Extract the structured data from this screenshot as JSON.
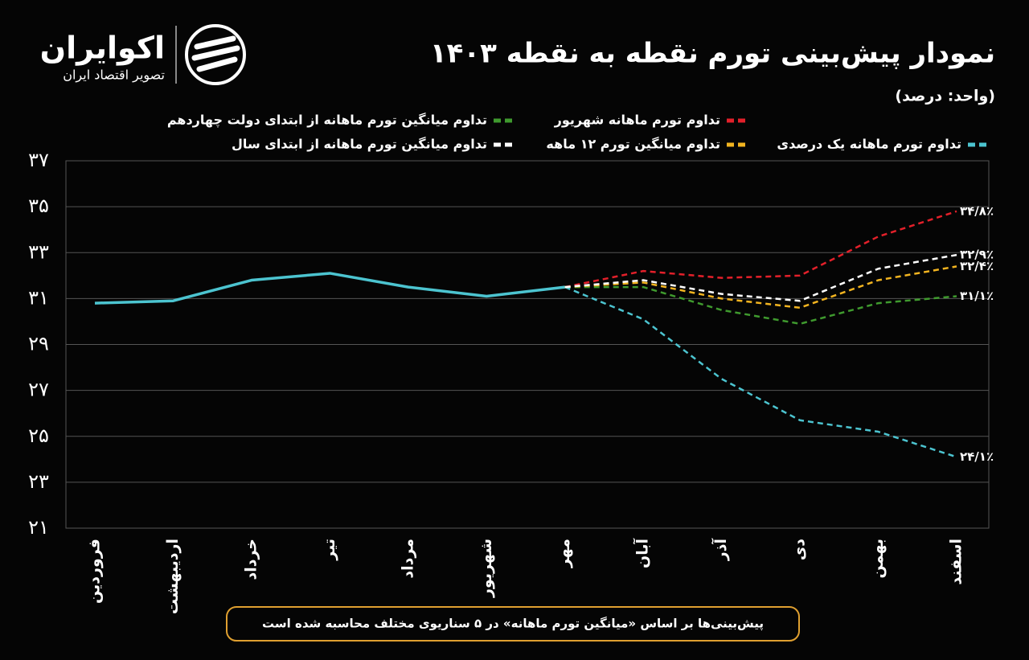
{
  "brand": {
    "name": "اکوایران",
    "tagline": "تصویر اقتصاد ایران"
  },
  "chart_data": {
    "type": "line",
    "title": "نمودار پیش‌بینی تورم نقطه به نقطه ۱۴۰۳",
    "subtitle": "(واحد: درصد)",
    "note": "پیش‌بینی‌ها بر اساس «میانگین تورم ماهانه» در ۵ سناریوی مختلف محاسبه شده است",
    "categories": [
      "فروردین",
      "اردیبهشت",
      "خرداد",
      "تیر",
      "مرداد",
      "شهریور",
      "مهر",
      "آبان",
      "آذر",
      "دی",
      "بهمن",
      "اسفند"
    ],
    "ylim": [
      21,
      37
    ],
    "yticks": [
      {
        "value": 21,
        "label": "۲۱"
      },
      {
        "value": 23,
        "label": "۲۳"
      },
      {
        "value": 25,
        "label": "۲۵"
      },
      {
        "value": 27,
        "label": "۲۷"
      },
      {
        "value": 29,
        "label": "۲۹"
      },
      {
        "value": 31,
        "label": "۳۱"
      },
      {
        "value": 33,
        "label": "۳۳"
      },
      {
        "value": 35,
        "label": "۳۵"
      },
      {
        "value": 37,
        "label": "۳۷"
      }
    ],
    "grid": true,
    "series": [
      {
        "color": "#4cc4d0",
        "dashed": false,
        "values": [
          30.8,
          30.9,
          31.8,
          32.1,
          31.5,
          31.1,
          31.5,
          null,
          null,
          null,
          null,
          null
        ]
      },
      {
        "name": "تداوم تورم ماهانه شهریور",
        "color": "#e3202a",
        "dashed": true,
        "values": [
          null,
          null,
          null,
          null,
          null,
          null,
          31.5,
          32.2,
          31.9,
          32.0,
          33.7,
          34.8
        ],
        "value_labels": [
          null,
          null,
          null,
          null,
          null,
          null,
          null,
          null,
          null,
          null,
          null,
          "۳۴/۸٪"
        ]
      },
      {
        "name": "تداوم میانگین تورم ماهانه از ابتدای دولت چهاردهم",
        "color": "#3f9a2e",
        "dashed": true,
        "values": [
          null,
          null,
          null,
          null,
          null,
          null,
          31.5,
          31.5,
          30.5,
          29.9,
          30.8,
          31.1
        ],
        "value_labels": [
          null,
          null,
          null,
          null,
          null,
          null,
          null,
          null,
          null,
          null,
          null,
          "۳۱/۱٪"
        ]
      },
      {
        "name": "تداوم تورم ماهانه یک درصدی",
        "color": "#4cc4d0",
        "dashed": true,
        "values": [
          null,
          null,
          null,
          null,
          null,
          null,
          31.5,
          30.1,
          27.5,
          25.7,
          25.2,
          24.1
        ],
        "value_labels": [
          null,
          null,
          null,
          null,
          null,
          null,
          null,
          null,
          null,
          null,
          null,
          "۲۴/۱٪"
        ]
      },
      {
        "name": "تداوم میانگین تورم ۱۲ ماهه",
        "color": "#f2b420",
        "dashed": true,
        "values": [
          null,
          null,
          null,
          null,
          null,
          null,
          31.5,
          31.7,
          31.0,
          30.6,
          31.8,
          32.4
        ],
        "value_labels": [
          null,
          null,
          null,
          null,
          null,
          null,
          null,
          null,
          null,
          null,
          null,
          "۳۲/۴٪"
        ]
      },
      {
        "name": "تداوم میانگین تورم ماهانه از ابتدای سال",
        "color": "#ffffff",
        "dashed": true,
        "values": [
          null,
          null,
          null,
          null,
          null,
          null,
          31.5,
          31.8,
          31.2,
          30.9,
          32.3,
          32.9
        ],
        "value_labels": [
          null,
          null,
          null,
          null,
          null,
          null,
          null,
          null,
          null,
          null,
          null,
          "۳۲/۹٪"
        ]
      }
    ]
  }
}
